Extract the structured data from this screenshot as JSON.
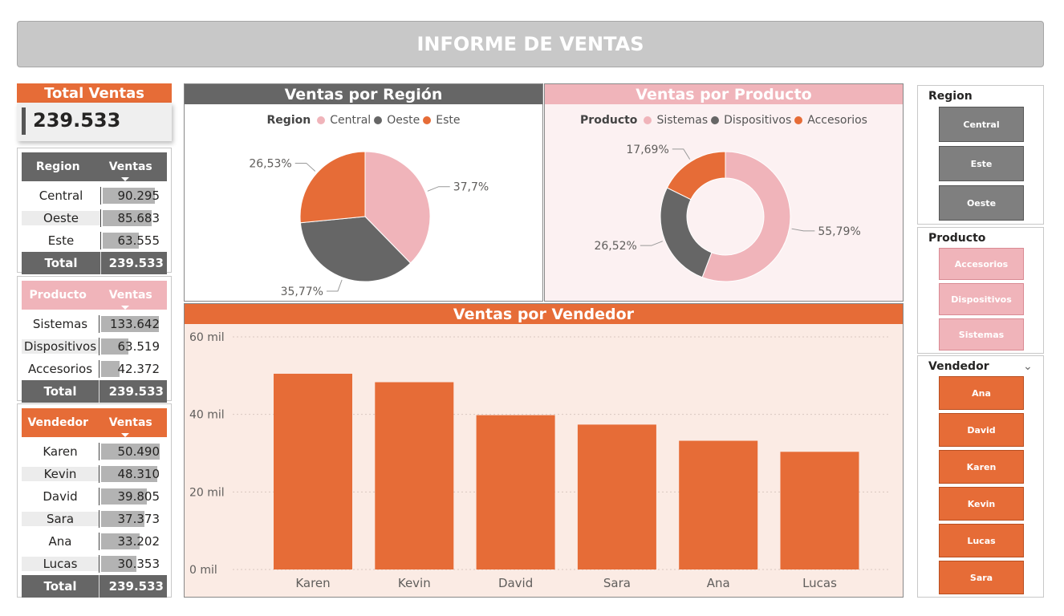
{
  "header": {
    "title": "INFORME DE VENTAS"
  },
  "kpi": {
    "title": "Total Ventas",
    "value": "239.533"
  },
  "region_table": {
    "col1": "Region",
    "col2": "Ventas",
    "rows": [
      {
        "label": "Central",
        "value": "90.295",
        "fraction": 0.9
      },
      {
        "label": "Oeste",
        "value": "85.683",
        "fraction": 0.85
      },
      {
        "label": "Este",
        "value": "63.555",
        "fraction": 0.63
      }
    ],
    "total_label": "Total",
    "total_value": "239.533"
  },
  "product_table": {
    "col1": "Producto",
    "col2": "Ventas",
    "rows": [
      {
        "label": "Sistemas",
        "value": "133.642",
        "fraction": 0.97
      },
      {
        "label": "Dispositivos",
        "value": "63.519",
        "fraction": 0.46
      },
      {
        "label": "Accesorios",
        "value": "42.372",
        "fraction": 0.31
      }
    ],
    "total_label": "Total",
    "total_value": "239.533"
  },
  "seller_table": {
    "col1": "Vendedor",
    "col2": "Ventas",
    "rows": [
      {
        "label": "Karen",
        "value": "50.490",
        "fraction": 0.98
      },
      {
        "label": "Kevin",
        "value": "48.310",
        "fraction": 0.94
      },
      {
        "label": "David",
        "value": "39.805",
        "fraction": 0.77
      },
      {
        "label": "Sara",
        "value": "37.373",
        "fraction": 0.73
      },
      {
        "label": "Ana",
        "value": "33.202",
        "fraction": 0.65
      },
      {
        "label": "Lucas",
        "value": "30.353",
        "fraction": 0.59
      }
    ],
    "total_label": "Total",
    "total_value": "239.533"
  },
  "region_chart": {
    "title": "Ventas por Región",
    "legend_title": "Region",
    "legend": [
      "Central",
      "Oeste",
      "Este"
    ],
    "labels": [
      "37,7%",
      "35,77%",
      "26,53%"
    ]
  },
  "product_chart": {
    "title": "Ventas por Producto",
    "legend_title": "Producto",
    "legend": [
      "Sistemas",
      "Dispositivos",
      "Accesorios"
    ],
    "labels": [
      "55,79%",
      "26,52%",
      "17,69%"
    ]
  },
  "seller_chart": {
    "title": "Ventas por Vendedor",
    "y_ticks": [
      "0 mil",
      "20 mil",
      "40 mil",
      "60 mil"
    ]
  },
  "slicers": {
    "region": {
      "title": "Region",
      "items": [
        "Central",
        "Este",
        "Oeste"
      ]
    },
    "producto": {
      "title": "Producto",
      "items": [
        "Accesorios",
        "Dispositivos",
        "Sistemas"
      ]
    },
    "vendedor": {
      "title": "Vendedor",
      "items": [
        "Ana",
        "David",
        "Karen",
        "Kevin",
        "Lucas",
        "Sara"
      ]
    }
  },
  "colors": {
    "orange": "#e66c37",
    "pink": "#f0b4ba",
    "gray": "#666666",
    "light_orange_bg": "#fbebe4",
    "light_pink_bg": "#fcf1f2"
  },
  "chart_data": [
    {
      "type": "pie",
      "title": "Ventas por Región",
      "categories": [
        "Central",
        "Oeste",
        "Este"
      ],
      "values": [
        37.7,
        35.77,
        26.53
      ],
      "legend": "top"
    },
    {
      "type": "pie",
      "title": "Ventas por Producto",
      "categories": [
        "Sistemas",
        "Dispositivos",
        "Accesorios"
      ],
      "values": [
        55.79,
        26.52,
        17.69
      ],
      "legend": "top"
    },
    {
      "type": "bar",
      "title": "Ventas por Vendedor",
      "categories": [
        "Karen",
        "Kevin",
        "David",
        "Sara",
        "Ana",
        "Lucas"
      ],
      "values": [
        50490,
        48310,
        39805,
        37373,
        33202,
        30353
      ],
      "ylim": [
        0,
        60000
      ],
      "grid": true
    }
  ]
}
